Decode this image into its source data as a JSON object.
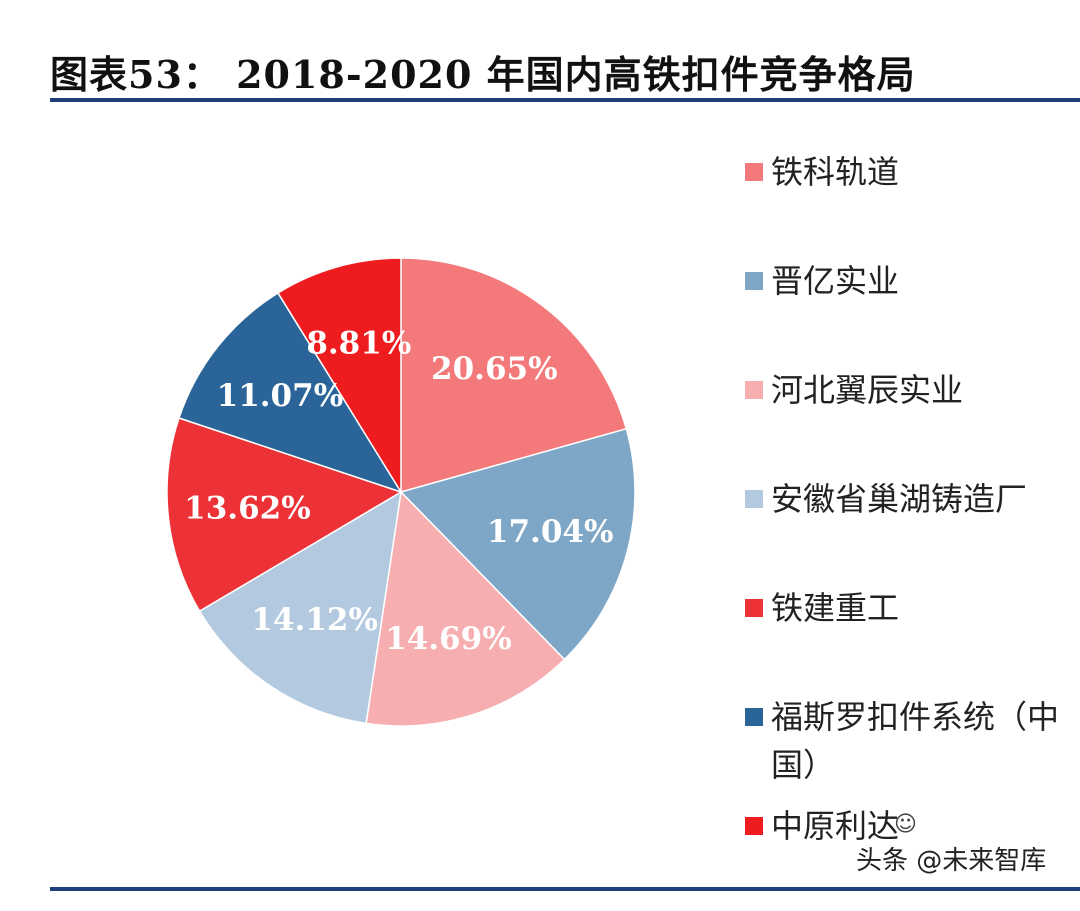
{
  "title": "图表53：   2018-2020 年国内高铁扣件竞争格局",
  "watermark": "头条 @未来智库",
  "chart_data": {
    "type": "pie",
    "title": "2018-2020 年国内高铁扣件竞争格局",
    "start_angle_deg": 0,
    "direction": "clockwise",
    "slices": [
      {
        "name": "铁科轨道",
        "value": 20.65,
        "label": "20.65%",
        "color": "#f4797b"
      },
      {
        "name": "晋亿实业",
        "value": 17.04,
        "label": "17.04%",
        "color": "#7ea6c6"
      },
      {
        "name": "河北翼辰实业",
        "value": 14.69,
        "label": "14.69%",
        "color": "#f6aeb0"
      },
      {
        "name": "安徽省巢湖铸造厂",
        "value": 14.12,
        "label": "14.12%",
        "color": "#b3c9df"
      },
      {
        "name": "铁建重工",
        "value": 13.62,
        "label": "13.62%",
        "color": "#ec3237"
      },
      {
        "name": "福斯罗扣件系统（中国）",
        "value": 11.07,
        "label": "11.07%",
        "color": "#2a6498"
      },
      {
        "name": "中原利达",
        "value": 8.81,
        "label": "8.81%",
        "color": "#ee1b1f"
      }
    ]
  }
}
